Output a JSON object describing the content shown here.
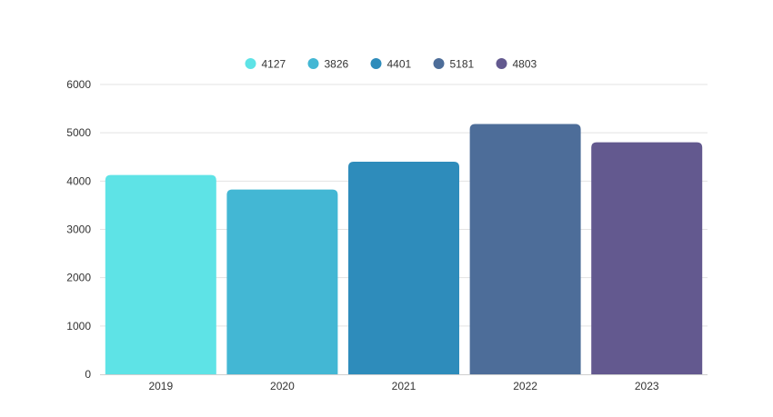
{
  "chart_data": {
    "type": "bar",
    "title": "",
    "xlabel": "",
    "ylabel": "",
    "categories": [
      "2019",
      "2020",
      "2021",
      "2022",
      "2023"
    ],
    "values": [
      4127,
      3826,
      4401,
      5181,
      4803
    ],
    "colors": [
      "#5ee3e6",
      "#43b7d4",
      "#2e8cbb",
      "#4d6d99",
      "#63598f"
    ],
    "ylim": [
      0,
      6000
    ],
    "yticks": [
      0,
      1000,
      2000,
      3000,
      4000,
      5000,
      6000
    ],
    "grid": true,
    "legend": {
      "placement": "top-center",
      "entries": [
        "4127",
        "3826",
        "4401",
        "5181",
        "4803"
      ]
    }
  }
}
